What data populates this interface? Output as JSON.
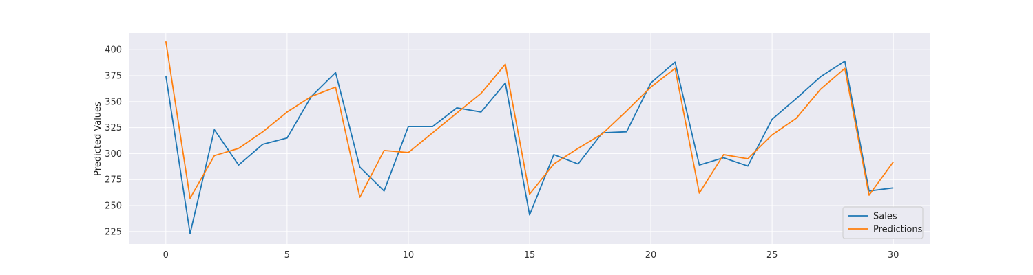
{
  "chart_data": {
    "type": "line",
    "title": "",
    "xlabel": "",
    "ylabel": "Predicted Values",
    "x": [
      0,
      1,
      2,
      3,
      4,
      5,
      6,
      7,
      8,
      9,
      10,
      11,
      12,
      13,
      14,
      15,
      16,
      17,
      18,
      19,
      20,
      21,
      22,
      23,
      24,
      25,
      26,
      27,
      28,
      29,
      30
    ],
    "xlim": [
      -1.5,
      31.5
    ],
    "ylim": [
      213,
      416
    ],
    "xticks": [
      0,
      5,
      10,
      15,
      20,
      25,
      30
    ],
    "yticks": [
      225,
      250,
      275,
      300,
      325,
      350,
      375,
      400
    ],
    "grid": true,
    "legend_position": "lower-right",
    "series": [
      {
        "name": "Sales",
        "color": "#1f77b4",
        "values": [
          375,
          223,
          323,
          289,
          309,
          315,
          355,
          378,
          287,
          264,
          326,
          326,
          344,
          340,
          368,
          241,
          299,
          290,
          320,
          321,
          368,
          388,
          289,
          296,
          288,
          333,
          353,
          374,
          389,
          264,
          267
        ]
      },
      {
        "name": "Predictions",
        "color": "#ff7f0e",
        "values": [
          408,
          257,
          298,
          305,
          321,
          340,
          355,
          364,
          258,
          303,
          301,
          320,
          339,
          358,
          386,
          261,
          290,
          305,
          319,
          341,
          364,
          382,
          262,
          299,
          295,
          318,
          334,
          362,
          382,
          260,
          292
        ]
      }
    ]
  }
}
